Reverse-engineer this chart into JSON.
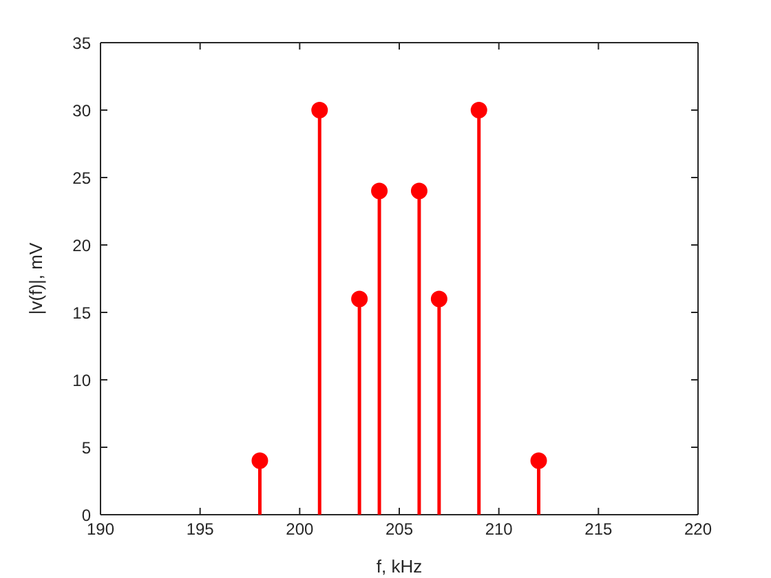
{
  "chart_data": {
    "type": "lollipop",
    "xlabel": "f, kHz",
    "ylabel": "|v(f)|, mV",
    "x": [
      198,
      201,
      203,
      204,
      206,
      207,
      209,
      212
    ],
    "values": [
      4,
      30,
      16,
      24,
      24,
      16,
      30,
      4
    ],
    "color": "#ff0000",
    "xlim": [
      190,
      220
    ],
    "xticks": [
      190,
      195,
      200,
      205,
      210,
      215,
      220
    ],
    "ylim": [
      0,
      35
    ],
    "yticks": [
      0,
      5,
      10,
      15,
      20,
      25,
      30,
      35
    ],
    "grid": false,
    "marker": "circle"
  }
}
